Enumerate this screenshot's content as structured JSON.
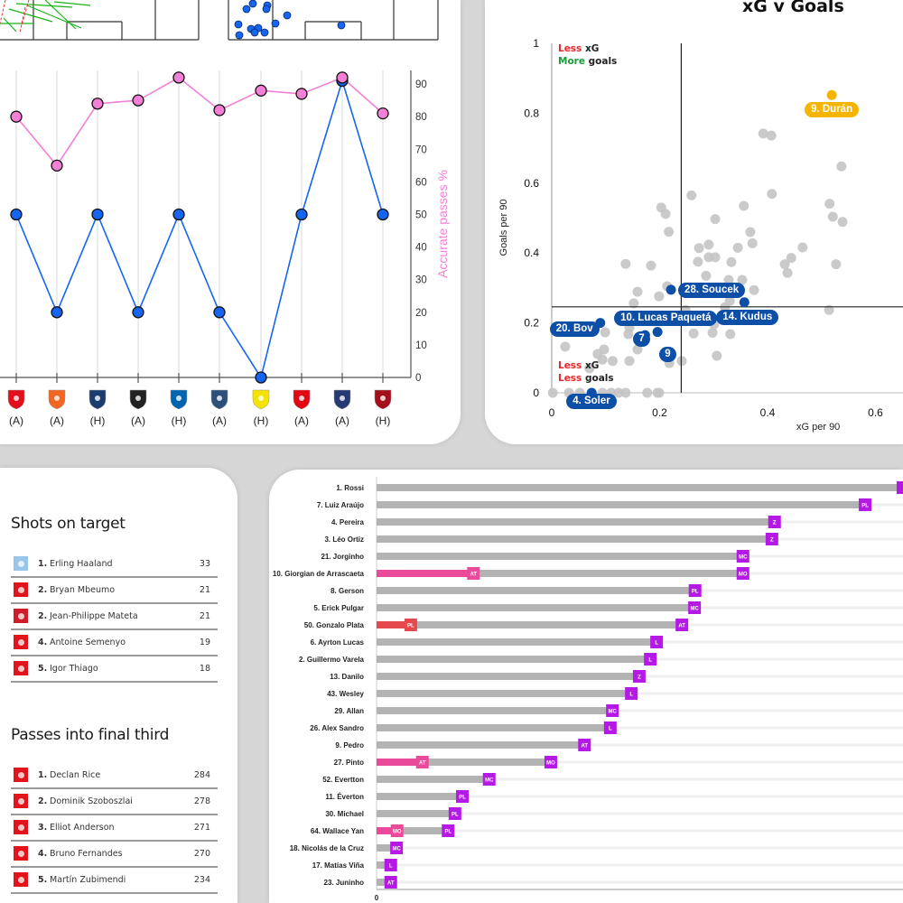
{
  "colors": {
    "pink": "#f47fd6",
    "blue": "#1565f0",
    "gray_dot": "#c4c4c4",
    "highlight_blue": "#0d4ea6",
    "highlight_gold": "#f5b400",
    "bar_gray": "#b3b3b3",
    "tag_purple": "#b519e6",
    "hl_pink": "#ea4a9a",
    "hl_red": "#e5484d",
    "less_red": "#e8262b",
    "more_green": "#1a9a3a"
  },
  "line_chart": {
    "chart_data": {
      "type": "line",
      "y_axis_label": "Accurate passes %",
      "y_ticks": [
        0,
        10,
        20,
        30,
        40,
        50,
        60,
        70,
        80,
        90
      ],
      "ylim": [
        0,
        94
      ],
      "categories": [
        "(A)",
        "(A)",
        "(H)",
        "(A)",
        "(H)",
        "(A)",
        "(H)",
        "(A)",
        "(A)",
        "(H)"
      ],
      "opponent_badges": [
        "reims-badge",
        "montpellier-badge",
        "psg-badge",
        "angers-badge",
        "auxerre-badge",
        "le-havre-badge",
        "nantes-badge",
        "lyon-badge",
        "paris-fc-badge",
        "nice-badge"
      ],
      "badge_colors": [
        "#e3101c",
        "#f26522",
        "#1a3c6e",
        "#222222",
        "#0064b1",
        "#2c4f7c",
        "#f4e300",
        "#e30613",
        "#283a73",
        "#a30f1b"
      ],
      "series": [
        {
          "key": "accurate_passes",
          "color": "#f47fd6",
          "values": [
            80,
            65,
            84,
            85,
            92,
            82,
            88,
            87,
            92,
            81
          ]
        },
        {
          "key": "second_metric",
          "color": "#1565f0",
          "values": [
            50,
            20,
            50,
            20,
            50,
            20,
            0,
            50,
            91,
            50
          ]
        }
      ],
      "grid": "vertical"
    }
  },
  "scatter": {
    "chart_data": {
      "type": "scatter",
      "title": "xG v Goals",
      "xlabel": "xG per 90",
      "ylabel": "Goals per 90",
      "xlim": [
        0,
        0.65
      ],
      "ylim": [
        0,
        1
      ],
      "x_ticks": [
        "0",
        "0.2",
        "0.4",
        "0.6"
      ],
      "y_ticks": [
        "0",
        "0.2",
        "0.4",
        "0.6",
        "0.8",
        "1"
      ],
      "reference_lines": {
        "x": 0.24,
        "y": 0.246
      },
      "points": [
        [
          0.392,
          0.742
        ],
        [
          0.407,
          0.736
        ],
        [
          0.537,
          0.648
        ],
        [
          0.408,
          0.569
        ],
        [
          0.259,
          0.565
        ],
        [
          0.356,
          0.535
        ],
        [
          0.515,
          0.541
        ],
        [
          0.521,
          0.504
        ],
        [
          0.539,
          0.489
        ],
        [
          0.203,
          0.53
        ],
        [
          0.211,
          0.512
        ],
        [
          0.217,
          0.461
        ],
        [
          0.303,
          0.497
        ],
        [
          0.368,
          0.46
        ],
        [
          0.372,
          0.428
        ],
        [
          0.273,
          0.414
        ],
        [
          0.291,
          0.424
        ],
        [
          0.345,
          0.415
        ],
        [
          0.465,
          0.416
        ],
        [
          0.291,
          0.388
        ],
        [
          0.303,
          0.388
        ],
        [
          0.271,
          0.375
        ],
        [
          0.333,
          0.374
        ],
        [
          0.432,
          0.368
        ],
        [
          0.444,
          0.386
        ],
        [
          0.437,
          0.343
        ],
        [
          0.527,
          0.368
        ],
        [
          0.137,
          0.369
        ],
        [
          0.184,
          0.364
        ],
        [
          0.286,
          0.335
        ],
        [
          0.328,
          0.323
        ],
        [
          0.353,
          0.323
        ],
        [
          0.375,
          0.294
        ],
        [
          0.159,
          0.289
        ],
        [
          0.214,
          0.305
        ],
        [
          0.199,
          0.276
        ],
        [
          0.152,
          0.256
        ],
        [
          0.33,
          0.263
        ],
        [
          0.514,
          0.237
        ],
        [
          0.248,
          0.237
        ],
        [
          0.321,
          0.245
        ],
        [
          0.144,
          0.186
        ],
        [
          0.099,
          0.173
        ],
        [
          0.142,
          0.168
        ],
        [
          0.263,
          0.17
        ],
        [
          0.298,
          0.172
        ],
        [
          0.331,
          0.168
        ],
        [
          0.301,
          0.196
        ],
        [
          0.025,
          0.132
        ],
        [
          0.097,
          0.124
        ],
        [
          0.159,
          0.124
        ],
        [
          0.306,
          0.106
        ],
        [
          0.085,
          0.111
        ],
        [
          0.094,
          0.095
        ],
        [
          0.113,
          0.091
        ],
        [
          0.144,
          0.091
        ],
        [
          0.241,
          0.091
        ],
        [
          0.218,
          0.085
        ],
        [
          0.07,
          0.07
        ],
        [
          0.002,
          0
        ],
        [
          0.032,
          0
        ],
        [
          0.052,
          0
        ],
        [
          0.094,
          0
        ],
        [
          0.11,
          0
        ],
        [
          0.124,
          0
        ],
        [
          0.137,
          0
        ],
        [
          0.177,
          0
        ],
        [
          0.196,
          0
        ],
        [
          0.199,
          0
        ]
      ],
      "highlighted": [
        {
          "label": "9. Durán",
          "x": 0.519,
          "y": 0.852,
          "color": "#f5b400"
        },
        {
          "label": "28. Soucek",
          "x": 0.221,
          "y": 0.295,
          "color": "#0d4ea6"
        },
        {
          "label": "14. Kudus",
          "x": 0.357,
          "y": 0.259,
          "color": "#0d4ea6"
        },
        {
          "label": "10. Lucas Paquetá",
          "x": 0.196,
          "y": 0.174,
          "color": "#0d4ea6"
        },
        {
          "label": "20. Bov",
          "x": 0.09,
          "y": 0.2,
          "color": "#0d4ea6"
        },
        {
          "label": "7",
          "x": 0.173,
          "y": 0.165,
          "color": "#0d4ea6"
        },
        {
          "label": "9",
          "x": 0.213,
          "y": 0.108,
          "color": "#0d4ea6"
        },
        {
          "label": "4. Soler",
          "x": 0.074,
          "y": 0,
          "color": "#0d4ea6"
        }
      ],
      "quadrant_labels": {
        "top_left": [
          {
            "word": "Less",
            "color": "#e8262b",
            "rest": " xG"
          },
          {
            "word": "More",
            "color": "#1a9a3a",
            "rest": " goals"
          }
        ],
        "bottom_left": [
          {
            "word": "Less",
            "color": "#e8262b",
            "rest": " xG"
          },
          {
            "word": "Less",
            "color": "#e8262b",
            "rest": " goals"
          }
        ]
      }
    }
  },
  "tables": [
    {
      "title": "Shots on target",
      "rows": [
        {
          "rank": "1.",
          "name": "Erling Haaland",
          "value": "33",
          "badge": "man-city-badge",
          "badge_color": "#98c5e9"
        },
        {
          "rank": "2.",
          "name": "Bryan Mbeumo",
          "value": "21",
          "badge": "man-utd-badge",
          "badge_color": "#e3131b"
        },
        {
          "rank": "2.",
          "name": "Jean-Philippe Mateta",
          "value": "21",
          "badge": "crystal-palace-badge",
          "badge_color": "#d01c2a"
        },
        {
          "rank": "4.",
          "name": "Antoine Semenyo",
          "value": "19",
          "badge": "bournemouth-badge",
          "badge_color": "#e3131b"
        },
        {
          "rank": "5.",
          "name": "Igor Thiago",
          "value": "18",
          "badge": "brentford-badge",
          "badge_color": "#e3131b"
        }
      ]
    },
    {
      "title": "Passes into final third",
      "rows": [
        {
          "rank": "1.",
          "name": "Declan Rice",
          "value": "284",
          "badge": "arsenal-badge",
          "badge_color": "#e3131b"
        },
        {
          "rank": "2.",
          "name": "Dominik Szoboszlai",
          "value": "278",
          "badge": "liverpool-badge",
          "badge_color": "#e3131b"
        },
        {
          "rank": "3.",
          "name": "Elliot Anderson",
          "value": "271",
          "badge": "nottingham-forest-badge",
          "badge_color": "#e3131b"
        },
        {
          "rank": "4.",
          "name": "Bruno Fernandes",
          "value": "270",
          "badge": "man-utd-badge",
          "badge_color": "#e3131b"
        },
        {
          "rank": "5.",
          "name": "Martín Zubimendi",
          "value": "234",
          "badge": "arsenal-badge",
          "badge_color": "#e3131b"
        }
      ]
    }
  ],
  "bars": {
    "chart_data": {
      "type": "bar",
      "orientation": "horizontal",
      "x_ticks": [
        "0"
      ],
      "xlim": [
        0,
        100
      ],
      "rows": [
        {
          "name": "1. Rossi",
          "value": 100,
          "tag": ""
        },
        {
          "name": "7. Luiz Araújo",
          "value": 92.8,
          "tag": "PL"
        },
        {
          "name": "4. Pereira",
          "value": 75.6,
          "tag": "Z"
        },
        {
          "name": "3. Léo Ortiz",
          "value": 75.1,
          "tag": "Z"
        },
        {
          "name": "21. Jorginho",
          "value": 69.6,
          "tag": "MC"
        },
        {
          "name": "10. Giorgian de Arrascaeta",
          "value": 69.6,
          "tag": "MO",
          "hl_value": 18.4,
          "hl_tag": "AT",
          "hl_color": "#ea4a9a"
        },
        {
          "name": "8. Gerson",
          "value": 60.5,
          "tag": "PL"
        },
        {
          "name": "5. Erick Pulgar",
          "value": 60.4,
          "tag": "MC"
        },
        {
          "name": "50. Gonzalo Plata",
          "value": 58.0,
          "tag": "AT",
          "hl_value": 6.5,
          "hl_tag": "PL",
          "hl_color": "#e5484d"
        },
        {
          "name": "6. Ayrton Lucas",
          "value": 53.2,
          "tag": "L"
        },
        {
          "name": "2. Guillermo Varela",
          "value": 52.0,
          "tag": "L"
        },
        {
          "name": "13. Danilo",
          "value": 49.9,
          "tag": "Z"
        },
        {
          "name": "43. Wesley",
          "value": 48.4,
          "tag": "L"
        },
        {
          "name": "29. Allan",
          "value": 44.8,
          "tag": "MC"
        },
        {
          "name": "26. Alex Sandro",
          "value": 44.4,
          "tag": "L"
        },
        {
          "name": "9. Pedro",
          "value": 39.5,
          "tag": "AT"
        },
        {
          "name": "27. Pinto",
          "value": 33.1,
          "tag": "MO",
          "hl_value": 8.7,
          "hl_tag": "AT",
          "hl_color": "#ea4a9a"
        },
        {
          "name": "52. Evertton",
          "value": 21.4,
          "tag": "MC"
        },
        {
          "name": "11. Éverton",
          "value": 16.3,
          "tag": "PL"
        },
        {
          "name": "30. Michael",
          "value": 14.9,
          "tag": "PL"
        },
        {
          "name": "64. Wallace Yan",
          "value": 13.6,
          "tag": "PL",
          "hl_value": 3.9,
          "hl_tag": "MO",
          "hl_color": "#ea4a9a"
        },
        {
          "name": "18. Nicolás de la Cruz",
          "value": 3.8,
          "tag": "MC"
        },
        {
          "name": "17. Matías Viña",
          "value": 2.7,
          "tag": "L"
        },
        {
          "name": "23. Juninho",
          "value": 2.7,
          "tag": "AT"
        }
      ]
    }
  }
}
